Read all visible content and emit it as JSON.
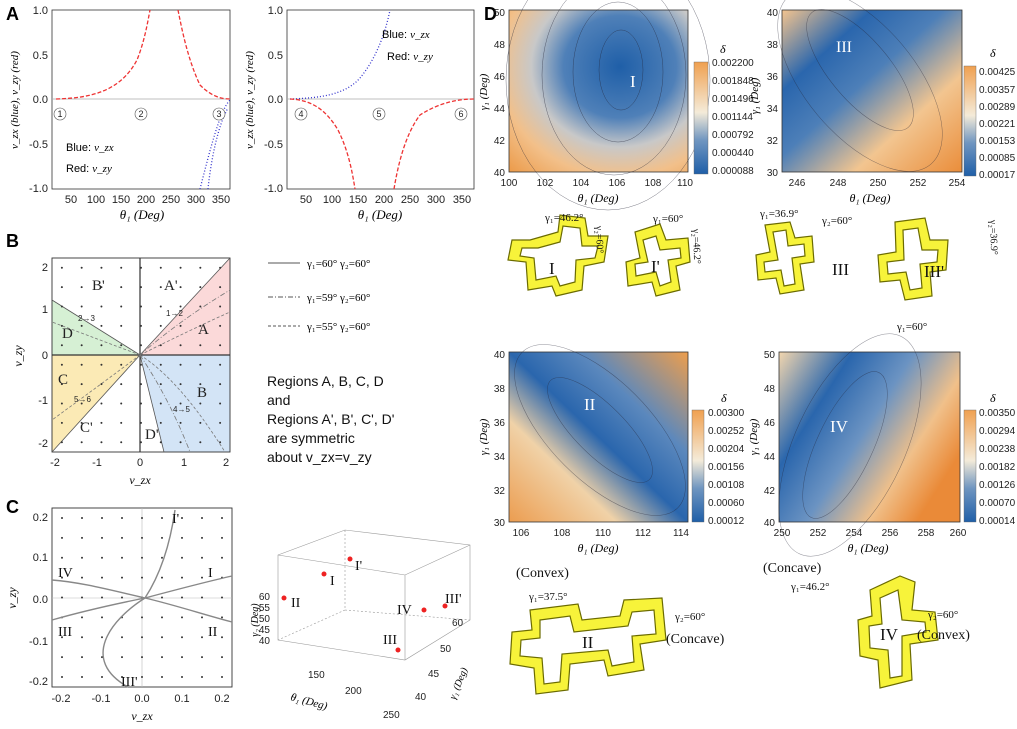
{
  "panel_letters": {
    "a": "A",
    "b": "B",
    "c": "C",
    "d": "D"
  },
  "a1": {
    "ylabel": "v_zx (blue), v_zy (red)",
    "xlabel": "θ₁ (Deg)",
    "yticks": [
      "1.0",
      "0.5",
      "0.0",
      "-0.5",
      "-1.0"
    ],
    "xticks": [
      "50",
      "100",
      "150",
      "200",
      "250",
      "300",
      "350"
    ],
    "markers": [
      "1",
      "2",
      "3"
    ],
    "legend_blue": "Blue: ",
    "legend_red": "Red: ",
    "legend_blue_sym": "v_zx",
    "legend_red_sym": "v_zy"
  },
  "a2": {
    "ylabel": "v_zx (blue), v_zy (red)",
    "xlabel": "θ₁ (Deg)",
    "yticks": [
      "1.0",
      "0.5",
      "0.0",
      "-0.5",
      "-1.0"
    ],
    "xticks": [
      "50",
      "100",
      "150",
      "200",
      "250",
      "300",
      "350"
    ],
    "markers": [
      "4",
      "5",
      "6"
    ],
    "legend_blue": "Blue: ",
    "legend_red": "Red: ",
    "legend_blue_sym": "v_zx",
    "legend_red_sym": "v_zy"
  },
  "b": {
    "xlabel": "v_zx",
    "ylabel": "v_zy",
    "xticks": [
      "-2",
      "-1",
      "0",
      "1",
      "2"
    ],
    "yticks": [
      "2",
      "1",
      "0",
      "-1",
      "-2"
    ],
    "regions": [
      "A'",
      "B'",
      "A",
      "D",
      "C",
      "B",
      "C'",
      "D'"
    ],
    "paths": [
      "1→2",
      "2→3",
      "5→6",
      "4→5"
    ],
    "legend": [
      "γ₁=60°  γ₂=60°",
      "γ₁=59°  γ₂=60°",
      "γ₁=55°  γ₂=60°"
    ],
    "note": [
      "Regions A, B, C, D",
      "and",
      "Regions A', B', C', D'",
      "are symmetric",
      "about v_zx=v_zy"
    ]
  },
  "c": {
    "xlabel": "v_zx",
    "ylabel": "v_zy",
    "xticks": [
      "-0.2",
      "-0.1",
      "0.0",
      "0.1",
      "0.2"
    ],
    "yticks": [
      "0.2",
      "0.1",
      "0.0",
      "-0.1",
      "-0.2"
    ],
    "regions": [
      "I'",
      "IV",
      "I",
      "III",
      "II",
      "III'"
    ]
  },
  "c3d": {
    "points": [
      "I'",
      "I",
      "II",
      "IV",
      "III'",
      "III"
    ],
    "zlabel": "γ₂ (Deg)",
    "xlabel": "θ₁ (Deg)",
    "ylabel": "γ₁ (Deg)",
    "zticks": [
      "60",
      "55",
      "50",
      "45",
      "40"
    ],
    "xticks": [
      "150",
      "200",
      "250"
    ],
    "yticks": [
      "60",
      "50",
      "45",
      "40"
    ]
  },
  "d": {
    "map_I": {
      "region": "I",
      "ylabel": "γ₁ (Deg)",
      "xlabel": "θ₁ (Deg)",
      "yticks": [
        "50",
        "48",
        "46",
        "44",
        "42",
        "40"
      ],
      "xticks": [
        "100",
        "102",
        "104",
        "106",
        "108",
        "110"
      ],
      "cb": [
        "0.002200",
        "0.001848",
        "0.001496",
        "0.001144",
        "0.000792",
        "0.000440",
        "0.000088"
      ],
      "delta": "δ"
    },
    "map_III": {
      "region": "III",
      "ylabel": "γ₁ (Deg)",
      "xlabel": "θ₁ (Deg)",
      "yticks": [
        "40",
        "38",
        "36",
        "34",
        "32",
        "30"
      ],
      "xticks": [
        "246",
        "248",
        "250",
        "252",
        "254"
      ],
      "cb": [
        "0.00425",
        "0.00357",
        "0.00289",
        "0.00221",
        "0.00153",
        "0.00085",
        "0.00017"
      ],
      "delta": "δ"
    },
    "map_II": {
      "region": "II",
      "ylabel": "γ₁ (Deg)",
      "xlabel": "θ₁ (Deg)",
      "yticks": [
        "40",
        "38",
        "36",
        "34",
        "32",
        "30"
      ],
      "xticks": [
        "106",
        "108",
        "110",
        "112",
        "114"
      ],
      "cb": [
        "0.00300",
        "0.00252",
        "0.00204",
        "0.00156",
        "0.00108",
        "0.00060",
        "0.00012"
      ],
      "delta": "δ"
    },
    "map_IV": {
      "region": "IV",
      "ylabel": "γ₁ (Deg)",
      "xlabel": "θ₁ (Deg)",
      "yticks": [
        "50",
        "48",
        "46",
        "44",
        "42",
        "40"
      ],
      "xticks": [
        "250",
        "252",
        "254",
        "256",
        "258",
        "260"
      ],
      "cb": [
        "0.00350",
        "0.00294",
        "0.00238",
        "0.00182",
        "0.00126",
        "0.00070",
        "0.00014"
      ],
      "delta": "δ"
    },
    "shapes": {
      "I": "I",
      "I2": "I'",
      "III": "III",
      "III2": "III'",
      "II": "II",
      "IV": "IV",
      "ann_I_g1": "γ₁=46.2°",
      "ann_I_g2": "γ₂=60°",
      "ann_I2_g1": "γ₁=60°",
      "ann_I2_g2": "γ₂=46.2°",
      "ann_III_g1": "γ₁=36.9°",
      "ann_III_g2": "γ₂=60°",
      "ann_III2_g2": "γ₂=36.9°",
      "ann_III2_g1": "γ₁=60°",
      "ann_II_convex": "(Convex)",
      "ann_II_g1": "γ₁=37.5°",
      "ann_II_g2": "γ₂=60°",
      "ann_II_concave": "(Concave)",
      "ann_IV_concave": "(Concave)",
      "ann_IV_g1": "γ₁=46.2°",
      "ann_IV_g2": "γ₂=60°",
      "ann_IV_convex": "(Convex)"
    }
  }
}
